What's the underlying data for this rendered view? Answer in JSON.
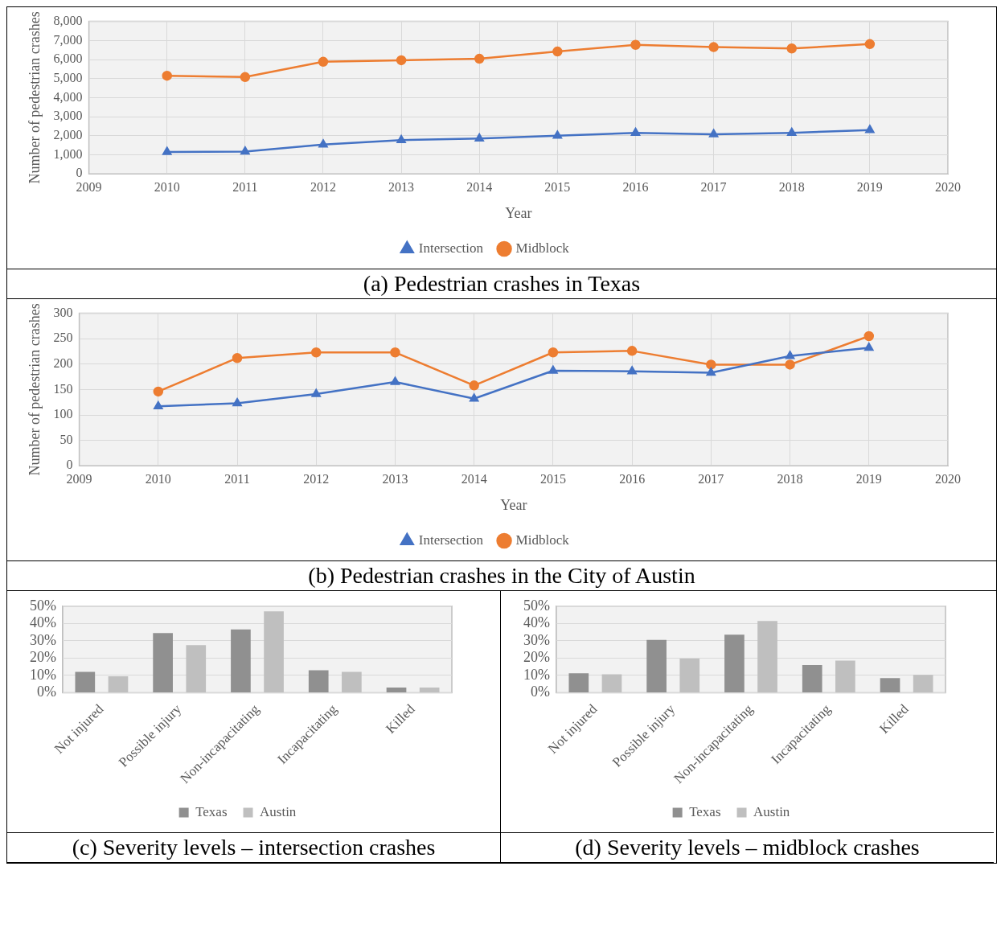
{
  "chart_data": [
    {
      "type": "line",
      "title": "(a)  Pedestrian crashes in Texas",
      "xlabel": "Year",
      "ylabel": "Number of pedestrian crashes",
      "x": [
        2010,
        2011,
        2012,
        2013,
        2014,
        2015,
        2016,
        2017,
        2018,
        2019
      ],
      "xlim": [
        2009,
        2020
      ],
      "xticks": [
        2009,
        2010,
        2011,
        2012,
        2013,
        2014,
        2015,
        2016,
        2017,
        2018,
        2019,
        2020
      ],
      "ylim": [
        0,
        8000
      ],
      "yticks": [
        0,
        {
          "value": 1000,
          "label": "1,000"
        },
        {
          "value": 2000,
          "label": "2,000"
        },
        {
          "value": 3000,
          "label": "3,000"
        },
        {
          "value": 4000,
          "label": "4,000"
        },
        {
          "value": 5000,
          "label": "5,000"
        },
        {
          "value": 6000,
          "label": "6,000"
        },
        {
          "value": 7000,
          "label": "7,000"
        },
        {
          "value": 8000,
          "label": "8,000"
        }
      ],
      "grid": true,
      "legend": "bottom",
      "series": [
        {
          "name": "Intersection",
          "color": "#4472c4",
          "marker": "triangle",
          "values": [
            1150,
            1170,
            1540,
            1770,
            1850,
            2000,
            2150,
            2080,
            2150,
            2300
          ]
        },
        {
          "name": "Midblock",
          "color": "#ed7d31",
          "marker": "circle",
          "values": [
            5150,
            5080,
            5880,
            5960,
            6040,
            6420,
            6770,
            6650,
            6580,
            6810
          ]
        }
      ]
    },
    {
      "type": "line",
      "title": "(b)  Pedestrian crashes in the City of Austin",
      "xlabel": "Year",
      "ylabel": "Number of pedestrian crashes",
      "x": [
        2010,
        2011,
        2012,
        2013,
        2014,
        2015,
        2016,
        2017,
        2018,
        2019
      ],
      "xlim": [
        2009,
        2020
      ],
      "xticks": [
        2009,
        2010,
        2011,
        2012,
        2013,
        2014,
        2015,
        2016,
        2017,
        2018,
        2019,
        2020
      ],
      "ylim": [
        0,
        300
      ],
      "yticks": [
        0,
        50,
        100,
        150,
        200,
        250,
        300
      ],
      "grid": true,
      "legend": "bottom",
      "series": [
        {
          "name": "Intersection",
          "color": "#4472c4",
          "marker": "triangle",
          "values": [
            117,
            123,
            141,
            165,
            132,
            187,
            186,
            183,
            216,
            232
          ]
        },
        {
          "name": "Midblock",
          "color": "#ed7d31",
          "marker": "circle",
          "values": [
            146,
            212,
            223,
            223,
            158,
            223,
            226,
            199,
            199,
            255
          ]
        }
      ]
    },
    {
      "type": "bar",
      "title": "(c)  Severity levels – intersection crashes",
      "categories": [
        "Not injured",
        "Possible injury",
        "Non-incapacitating",
        "Incapacitating",
        "Killed"
      ],
      "ylim": [
        0,
        50
      ],
      "yticks": [
        {
          "value": 0,
          "label": "0%"
        },
        {
          "value": 10,
          "label": "10%"
        },
        {
          "value": 20,
          "label": "20%"
        },
        {
          "value": 30,
          "label": "30%"
        },
        {
          "value": 40,
          "label": "40%"
        },
        {
          "value": 50,
          "label": "50%"
        }
      ],
      "grid": "y",
      "legend": "bottom",
      "series": [
        {
          "name": "Texas",
          "color": "#909090",
          "values": [
            12,
            34.5,
            36.5,
            13,
            3
          ]
        },
        {
          "name": "Austin",
          "color": "#bfbfbf",
          "values": [
            9.5,
            27.5,
            47,
            12,
            3
          ]
        }
      ]
    },
    {
      "type": "bar",
      "title": "(d)  Severity levels – midblock crashes",
      "categories": [
        "Not injured",
        "Possible injury",
        "Non-incapacitating",
        "Incapacitating",
        "Killed"
      ],
      "ylim": [
        0,
        50
      ],
      "yticks": [
        {
          "value": 0,
          "label": "0%"
        },
        {
          "value": 10,
          "label": "10%"
        },
        {
          "value": 20,
          "label": "20%"
        },
        {
          "value": 30,
          "label": "30%"
        },
        {
          "value": 40,
          "label": "40%"
        },
        {
          "value": 50,
          "label": "50%"
        }
      ],
      "grid": "y",
      "legend": "bottom",
      "series": [
        {
          "name": "Texas",
          "color": "#909090",
          "values": [
            11.2,
            30.5,
            33.5,
            16,
            8.4
          ]
        },
        {
          "name": "Austin",
          "color": "#bfbfbf",
          "values": [
            10.7,
            19.7,
            41.4,
            18.5,
            10.3
          ]
        }
      ]
    }
  ]
}
